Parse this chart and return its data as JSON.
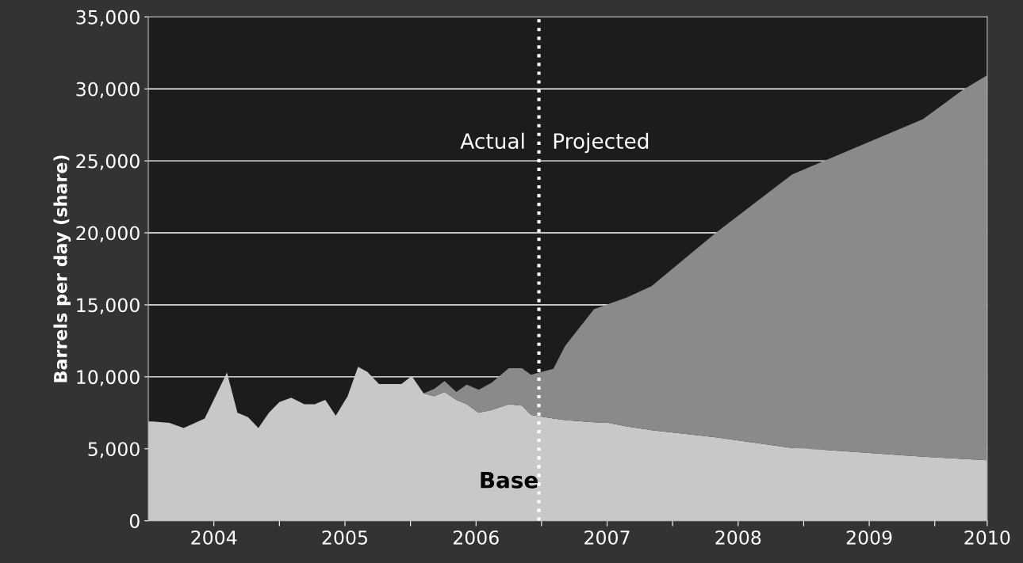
{
  "chart_data": {
    "type": "area",
    "stacked": true,
    "ylabel": "Barrels per day (share)",
    "x": [
      2003.5,
      2003.53,
      2003.66,
      2003.77,
      2003.93,
      2004.1,
      2004.18,
      2004.26,
      2004.34,
      2004.42,
      2004.5,
      2004.59,
      2004.69,
      2004.77,
      2004.85,
      2004.93,
      2005.02,
      2005.1,
      2005.17,
      2005.26,
      2005.43,
      2005.51,
      2005.6,
      2005.68,
      2005.76,
      2005.85,
      2005.93,
      2006.02,
      2006.12,
      2006.25,
      2006.35,
      2006.42,
      2006.59,
      2006.68,
      2006.9,
      2007.01,
      2007.15,
      2007.34,
      2007.83,
      2008.41,
      2008.63,
      2009.41,
      2009.71,
      2009.9
    ],
    "series": [
      {
        "name": "Base",
        "color": "#c8c8c8",
        "values": [
          6900,
          6900,
          6800,
          6450,
          7100,
          10300,
          7500,
          7200,
          6450,
          7500,
          8250,
          8550,
          8100,
          8100,
          8400,
          7300,
          8650,
          10700,
          10350,
          9500,
          9500,
          10050,
          8850,
          8650,
          8950,
          8400,
          8100,
          7500,
          7700,
          8100,
          8000,
          7350,
          7100,
          7000,
          6850,
          6800,
          6550,
          6300,
          5800,
          5050,
          4950,
          4450,
          4300,
          4200
        ]
      },
      {
        "color": "#8a8a8a",
        "values": [
          0,
          0,
          0,
          0,
          0,
          0,
          0,
          0,
          0,
          0,
          0,
          0,
          0,
          0,
          0,
          0,
          0,
          0,
          0,
          0,
          0,
          0,
          0,
          500,
          750,
          550,
          1350,
          1600,
          1900,
          2500,
          2600,
          2800,
          3450,
          5150,
          7850,
          8250,
          8950,
          10000,
          14200,
          19000,
          19950,
          23450,
          25600,
          26750
        ]
      }
    ],
    "xlim": [
      2003.5,
      2009.9
    ],
    "xticks": [
      {
        "value": 2004,
        "label": "2004"
      },
      {
        "value": 2004.5,
        "label": null
      },
      {
        "value": 2005,
        "label": "2005"
      },
      {
        "value": 2005.5,
        "label": null
      },
      {
        "value": 2006,
        "label": "2006"
      },
      {
        "value": 2006.5,
        "label": null
      },
      {
        "value": 2007,
        "label": "2007"
      },
      {
        "value": 2007.5,
        "label": null
      },
      {
        "value": 2008,
        "label": "2008"
      },
      {
        "value": 2008.5,
        "label": null
      },
      {
        "value": 2009,
        "label": "2009"
      },
      {
        "value": 2009.5,
        "label": null
      },
      {
        "value": 2009.9,
        "label": "2010"
      }
    ],
    "ylim": [
      0,
      35000
    ],
    "yticks": [
      {
        "value": 0,
        "label": "0"
      },
      {
        "value": 5000,
        "label": "5,000"
      },
      {
        "value": 10000,
        "label": "10,000"
      },
      {
        "value": 15000,
        "label": "15,000"
      },
      {
        "value": 20000,
        "label": "20,000"
      },
      {
        "value": 25000,
        "label": "25,000"
      },
      {
        "value": 30000,
        "label": "30,000"
      },
      {
        "value": 35000,
        "label": "35,000"
      }
    ],
    "grid": "y",
    "ref_lines": [
      {
        "axis": "x",
        "value": 2006.48,
        "color": "#ffffff",
        "line_style": "dotted"
      }
    ],
    "annotations": [
      "Actual",
      "Projected"
    ]
  }
}
